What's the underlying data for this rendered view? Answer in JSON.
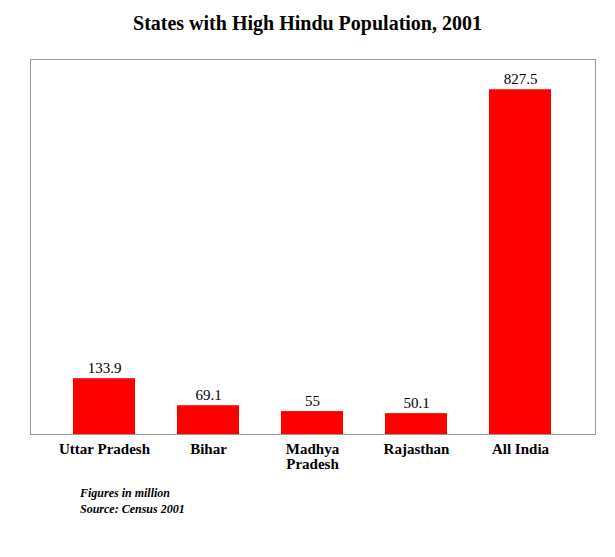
{
  "chart_data": {
    "type": "bar",
    "title": "States with High Hindu Population, 2001",
    "categories": [
      "Uttar Pradesh",
      "Bihar",
      "Madhya\nPradesh",
      "Rajasthan",
      "All India"
    ],
    "values": [
      133.9,
      69.1,
      55,
      50.1,
      827.5
    ],
    "color": "#ff0000",
    "ylim": [
      0,
      900
    ],
    "data_labels": true,
    "grid": false,
    "tick_labels": "x",
    "annotations": [
      "Figures in million",
      "Source: Census 2001"
    ]
  }
}
